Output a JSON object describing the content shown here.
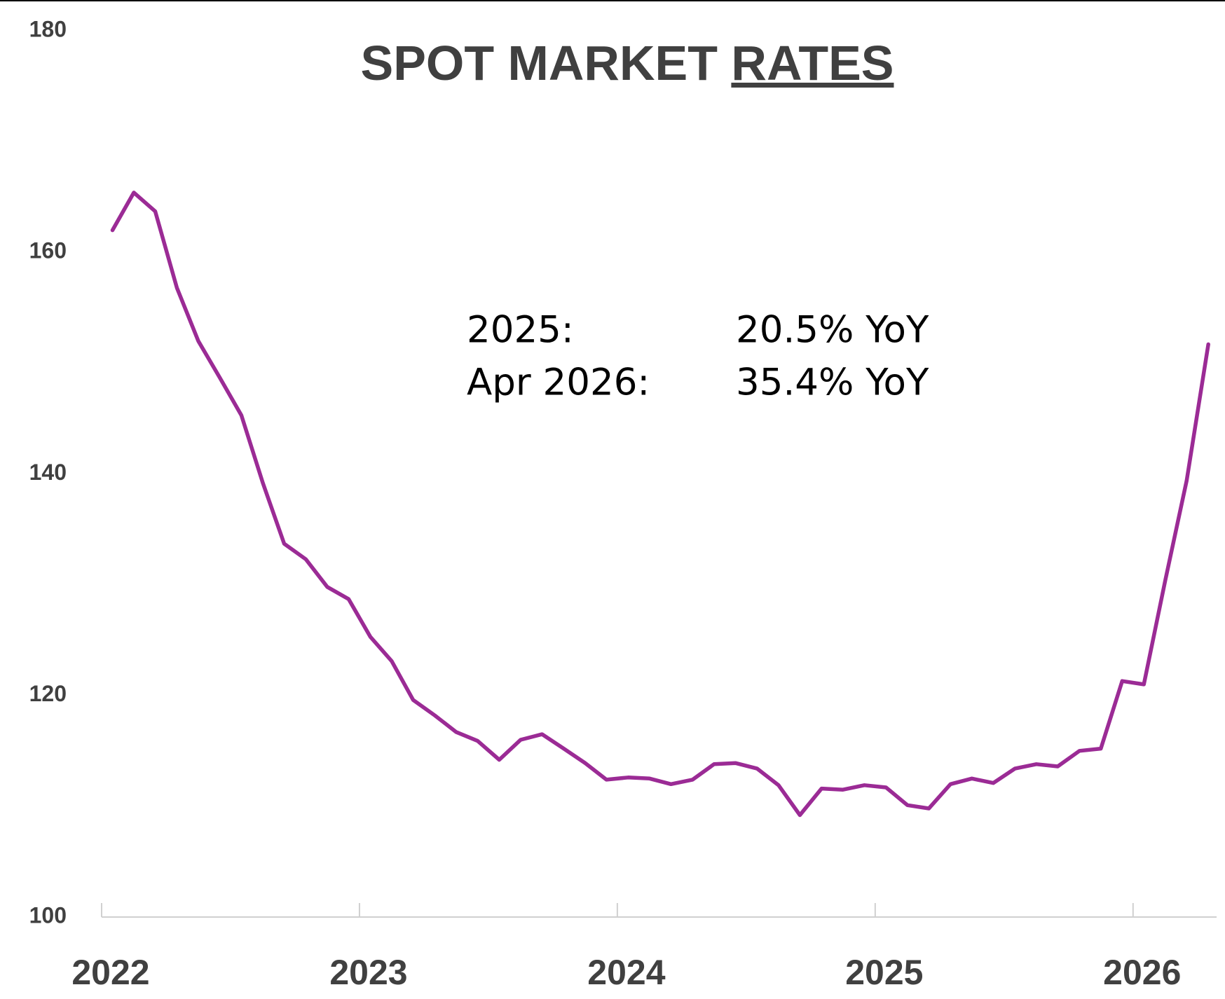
{
  "chart_data": {
    "type": "line",
    "title": "SPOT MARKET",
    "title_underlined": "RATES",
    "annotations": [
      [
        "2025:",
        "20.5% YoY"
      ],
      [
        "Apr 2026:",
        "35.4% YoY"
      ]
    ],
    "x": [
      2022.042,
      2022.125,
      2022.208,
      2022.292,
      2022.375,
      2022.458,
      2022.542,
      2022.625,
      2022.708,
      2022.792,
      2022.875,
      2022.958,
      2023.042,
      2023.125,
      2023.208,
      2023.292,
      2023.375,
      2023.458,
      2023.542,
      2023.625,
      2023.708,
      2023.792,
      2023.875,
      2023.958,
      2024.042,
      2024.125,
      2024.208,
      2024.292,
      2024.375,
      2024.458,
      2024.542,
      2024.625,
      2024.708,
      2024.792,
      2024.875,
      2024.958,
      2025.042,
      2025.125,
      2025.208,
      2025.292,
      2025.375,
      2025.458,
      2025.542,
      2025.625,
      2025.708,
      2025.792,
      2025.875,
      2025.958,
      2026.042,
      2026.125,
      2026.208,
      2026.292
    ],
    "series": [
      {
        "color": "#9b2b95",
        "values": [
          162.0,
          165.4,
          163.7,
          156.8,
          152.0,
          148.7,
          145.3,
          139.2,
          133.7,
          132.3,
          129.8,
          128.7,
          125.3,
          123.1,
          119.6,
          118.2,
          116.7,
          115.9,
          114.2,
          116.0,
          116.5,
          115.2,
          113.9,
          112.4,
          112.6,
          112.5,
          112.0,
          112.4,
          113.8,
          113.9,
          113.4,
          111.9,
          109.2,
          111.6,
          111.5,
          111.9,
          111.7,
          110.1,
          109.8,
          112.0,
          112.5,
          112.1,
          113.4,
          113.8,
          113.6,
          115.0,
          115.2,
          121.3,
          121.0,
          130.4,
          139.4,
          151.7
        ]
      }
    ],
    "xlim": [
      2022,
      2026.324
    ],
    "xticks": [
      2022,
      2023,
      2024,
      2025,
      2026
    ],
    "ylim": [
      100,
      180
    ],
    "yticks": [
      100,
      120,
      140,
      160,
      180
    ],
    "grid": false
  }
}
